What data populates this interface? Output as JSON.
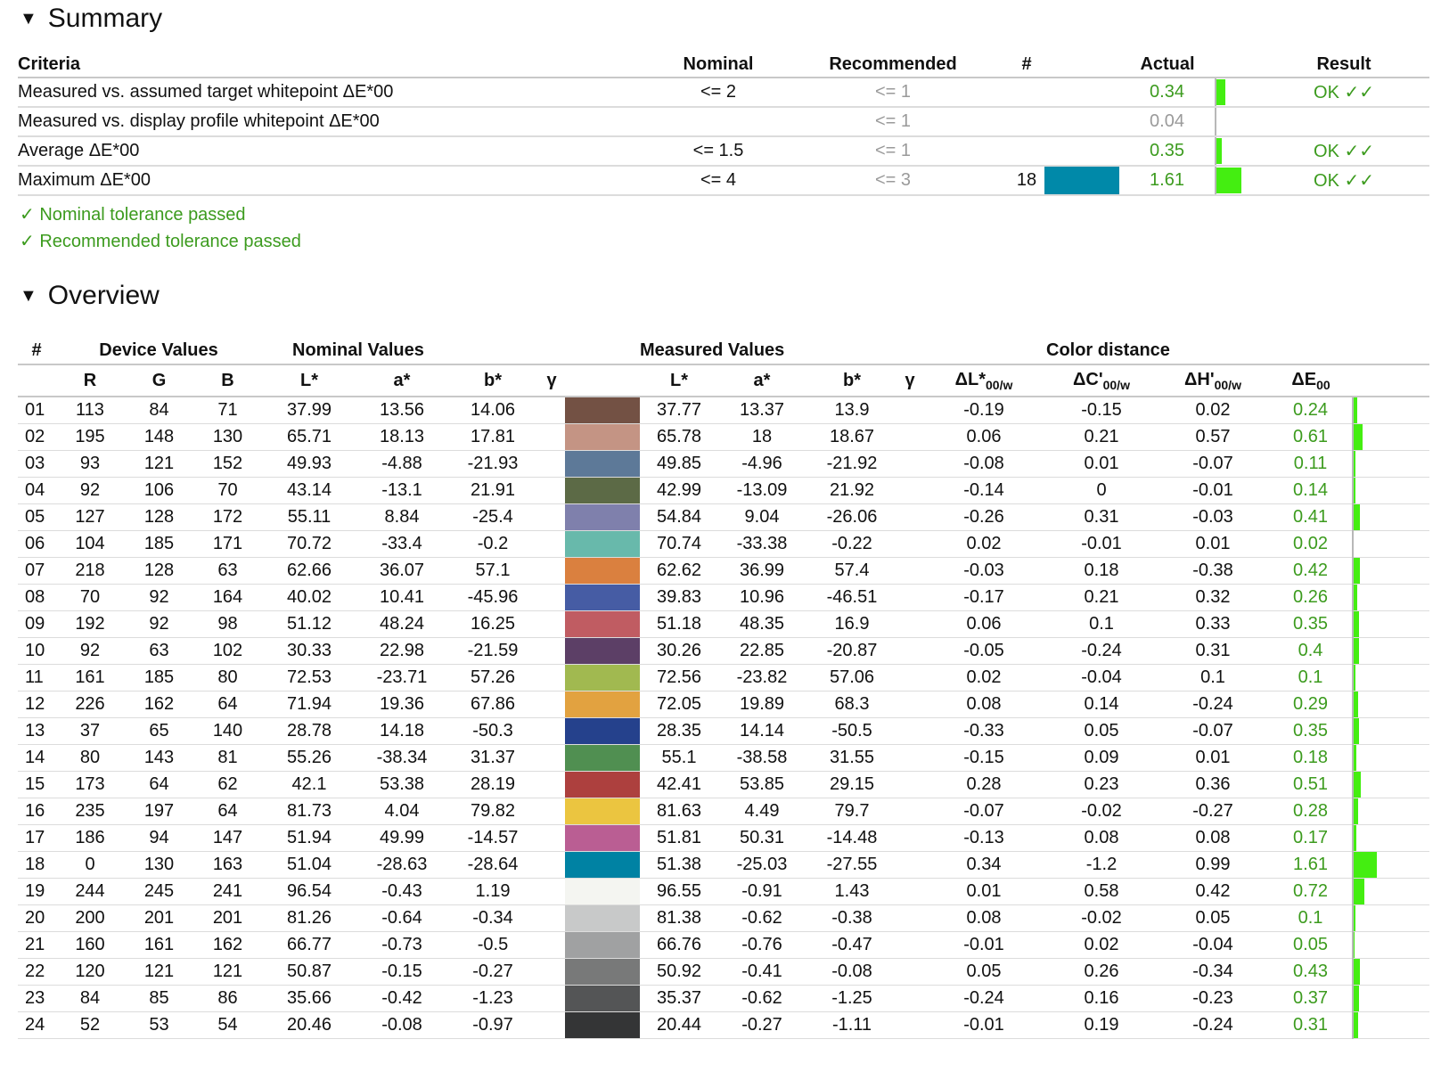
{
  "summary": {
    "title": "Summary",
    "columns": {
      "criteria": "Criteria",
      "nominal": "Nominal",
      "recommended": "Recommended",
      "num": "#",
      "actual": "Actual",
      "result": "Result"
    },
    "rows": [
      {
        "criteria": "Measured vs. assumed target whitepoint ΔE*00",
        "nominal": "<= 2",
        "recommended": "<= 1",
        "num": "",
        "actual": "0.34",
        "actual_fraction": 0.34,
        "result": "OK ✓✓",
        "actual_status": "ok"
      },
      {
        "criteria": "Measured vs. display profile whitepoint ΔE*00",
        "nominal": "",
        "recommended": "<= 1",
        "num": "",
        "actual": "0.04",
        "actual_fraction": 0,
        "result": "",
        "actual_status": "info"
      },
      {
        "criteria": "Average ΔE*00",
        "nominal": "<= 1.5",
        "recommended": "<= 1",
        "num": "",
        "actual": "0.35",
        "actual_fraction": 0.23,
        "result": "OK ✓✓",
        "actual_status": "ok"
      },
      {
        "criteria": "Maximum ΔE*00",
        "nominal": "<= 4",
        "recommended": "<= 3",
        "num": "18",
        "swatch": "#0089a9",
        "actual": "1.61",
        "actual_fraction": 1.0,
        "result": "OK ✓✓",
        "actual_status": "ok"
      }
    ],
    "pass_messages": [
      "✓ Nominal tolerance passed",
      "✓ Recommended tolerance passed"
    ]
  },
  "overview": {
    "title": "Overview",
    "group_headers": {
      "num": "#",
      "device": "Device Values",
      "nominal": "Nominal Values",
      "measured": "Measured Values",
      "distance": "Color distance"
    },
    "sub_headers": {
      "r": "R",
      "g": "G",
      "b": "B",
      "L": "L*",
      "a": "a*",
      "bb": "b*",
      "gamma": "γ",
      "mL": "L*",
      "ma": "a*",
      "mb": "b*",
      "mgamma": "γ",
      "dL": "ΔL*",
      "dC": "ΔC'",
      "dH": "ΔH'",
      "dE": "ΔE",
      "sub_w": "00/w",
      "sub_00": "00"
    },
    "rows": [
      {
        "id": "01",
        "r": "113",
        "g": "84",
        "b": "71",
        "L": "37.99",
        "a": "13.56",
        "bb": "14.06",
        "color": "#735144",
        "mL": "37.77",
        "ma": "13.37",
        "mb": "13.9",
        "dL": "-0.19",
        "dC": "-0.15",
        "dH": "0.02",
        "dE": "0.24"
      },
      {
        "id": "02",
        "r": "195",
        "g": "148",
        "b": "130",
        "L": "65.71",
        "a": "18.13",
        "bb": "17.81",
        "color": "#c49484",
        "mL": "65.78",
        "ma": "18",
        "mb": "18.67",
        "dL": "0.06",
        "dC": "0.21",
        "dH": "0.57",
        "dE": "0.61"
      },
      {
        "id": "03",
        "r": "93",
        "g": "121",
        "b": "152",
        "L": "49.93",
        "a": "-4.88",
        "bb": "-21.93",
        "color": "#5d7998",
        "mL": "49.85",
        "ma": "-4.96",
        "mb": "-21.92",
        "dL": "-0.08",
        "dC": "0.01",
        "dH": "-0.07",
        "dE": "0.11"
      },
      {
        "id": "04",
        "r": "92",
        "g": "106",
        "b": "70",
        "L": "43.14",
        "a": "-13.1",
        "bb": "21.91",
        "color": "#5c6a46",
        "mL": "42.99",
        "ma": "-13.09",
        "mb": "21.92",
        "dL": "-0.14",
        "dC": "0",
        "dH": "-0.01",
        "dE": "0.14"
      },
      {
        "id": "05",
        "r": "127",
        "g": "128",
        "b": "172",
        "L": "55.11",
        "a": "8.84",
        "bb": "-25.4",
        "color": "#7f80ac",
        "mL": "54.84",
        "ma": "9.04",
        "mb": "-26.06",
        "dL": "-0.26",
        "dC": "0.31",
        "dH": "-0.03",
        "dE": "0.41"
      },
      {
        "id": "06",
        "r": "104",
        "g": "185",
        "b": "171",
        "L": "70.72",
        "a": "-33.4",
        "bb": "-0.2",
        "color": "#68b9ab",
        "mL": "70.74",
        "ma": "-33.38",
        "mb": "-0.22",
        "dL": "0.02",
        "dC": "-0.01",
        "dH": "0.01",
        "dE": "0.02"
      },
      {
        "id": "07",
        "r": "218",
        "g": "128",
        "b": "63",
        "L": "62.66",
        "a": "36.07",
        "bb": "57.1",
        "color": "#da803f",
        "mL": "62.62",
        "ma": "36.99",
        "mb": "57.4",
        "dL": "-0.03",
        "dC": "0.18",
        "dH": "-0.38",
        "dE": "0.42"
      },
      {
        "id": "08",
        "r": "70",
        "g": "92",
        "b": "164",
        "L": "40.02",
        "a": "10.41",
        "bb": "-45.96",
        "color": "#465ca4",
        "mL": "39.83",
        "ma": "10.96",
        "mb": "-46.51",
        "dL": "-0.17",
        "dC": "0.21",
        "dH": "0.32",
        "dE": "0.26"
      },
      {
        "id": "09",
        "r": "192",
        "g": "92",
        "b": "98",
        "L": "51.12",
        "a": "48.24",
        "bb": "16.25",
        "color": "#c05c62",
        "mL": "51.18",
        "ma": "48.35",
        "mb": "16.9",
        "dL": "0.06",
        "dC": "0.1",
        "dH": "0.33",
        "dE": "0.35"
      },
      {
        "id": "10",
        "r": "92",
        "g": "63",
        "b": "102",
        "L": "30.33",
        "a": "22.98",
        "bb": "-21.59",
        "color": "#5c3f66",
        "mL": "30.26",
        "ma": "22.85",
        "mb": "-20.87",
        "dL": "-0.05",
        "dC": "-0.24",
        "dH": "0.31",
        "dE": "0.4"
      },
      {
        "id": "11",
        "r": "161",
        "g": "185",
        "b": "80",
        "L": "72.53",
        "a": "-23.71",
        "bb": "57.26",
        "color": "#a1b950",
        "mL": "72.56",
        "ma": "-23.82",
        "mb": "57.06",
        "dL": "0.02",
        "dC": "-0.04",
        "dH": "0.1",
        "dE": "0.1"
      },
      {
        "id": "12",
        "r": "226",
        "g": "162",
        "b": "64",
        "L": "71.94",
        "a": "19.36",
        "bb": "67.86",
        "color": "#e2a240",
        "mL": "72.05",
        "ma": "19.89",
        "mb": "68.3",
        "dL": "0.08",
        "dC": "0.14",
        "dH": "-0.24",
        "dE": "0.29"
      },
      {
        "id": "13",
        "r": "37",
        "g": "65",
        "b": "140",
        "L": "28.78",
        "a": "14.18",
        "bb": "-50.3",
        "color": "#25418c",
        "mL": "28.35",
        "ma": "14.14",
        "mb": "-50.5",
        "dL": "-0.33",
        "dC": "0.05",
        "dH": "-0.07",
        "dE": "0.35"
      },
      {
        "id": "14",
        "r": "80",
        "g": "143",
        "b": "81",
        "L": "55.26",
        "a": "-38.34",
        "bb": "31.37",
        "color": "#508f51",
        "mL": "55.1",
        "ma": "-38.58",
        "mb": "31.55",
        "dL": "-0.15",
        "dC": "0.09",
        "dH": "0.01",
        "dE": "0.18"
      },
      {
        "id": "15",
        "r": "173",
        "g": "64",
        "b": "62",
        "L": "42.1",
        "a": "53.38",
        "bb": "28.19",
        "color": "#ad403e",
        "mL": "42.41",
        "ma": "53.85",
        "mb": "29.15",
        "dL": "0.28",
        "dC": "0.23",
        "dH": "0.36",
        "dE": "0.51"
      },
      {
        "id": "16",
        "r": "235",
        "g": "197",
        "b": "64",
        "L": "81.73",
        "a": "4.04",
        "bb": "79.82",
        "color": "#ebc540",
        "mL": "81.63",
        "ma": "4.49",
        "mb": "79.7",
        "dL": "-0.07",
        "dC": "-0.02",
        "dH": "-0.27",
        "dE": "0.28"
      },
      {
        "id": "17",
        "r": "186",
        "g": "94",
        "b": "147",
        "L": "51.94",
        "a": "49.99",
        "bb": "-14.57",
        "color": "#ba5e93",
        "mL": "51.81",
        "ma": "50.31",
        "mb": "-14.48",
        "dL": "-0.13",
        "dC": "0.08",
        "dH": "0.08",
        "dE": "0.17"
      },
      {
        "id": "18",
        "r": "0",
        "g": "130",
        "b": "163",
        "L": "51.04",
        "a": "-28.63",
        "bb": "-28.64",
        "color": "#0082a3",
        "mL": "51.38",
        "ma": "-25.03",
        "mb": "-27.55",
        "dL": "0.34",
        "dC": "-1.2",
        "dH": "0.99",
        "dE": "1.61"
      },
      {
        "id": "19",
        "r": "244",
        "g": "245",
        "b": "241",
        "L": "96.54",
        "a": "-0.43",
        "bb": "1.19",
        "color": "#f4f5f1",
        "mL": "96.55",
        "ma": "-0.91",
        "mb": "1.43",
        "dL": "0.01",
        "dC": "0.58",
        "dH": "0.42",
        "dE": "0.72"
      },
      {
        "id": "20",
        "r": "200",
        "g": "201",
        "b": "201",
        "L": "81.26",
        "a": "-0.64",
        "bb": "-0.34",
        "color": "#c8c9c9",
        "mL": "81.38",
        "ma": "-0.62",
        "mb": "-0.38",
        "dL": "0.08",
        "dC": "-0.02",
        "dH": "0.05",
        "dE": "0.1"
      },
      {
        "id": "21",
        "r": "160",
        "g": "161",
        "b": "162",
        "L": "66.77",
        "a": "-0.73",
        "bb": "-0.5",
        "color": "#a0a1a2",
        "mL": "66.76",
        "ma": "-0.76",
        "mb": "-0.47",
        "dL": "-0.01",
        "dC": "0.02",
        "dH": "-0.04",
        "dE": "0.05"
      },
      {
        "id": "22",
        "r": "120",
        "g": "121",
        "b": "121",
        "L": "50.87",
        "a": "-0.15",
        "bb": "-0.27",
        "color": "#787979",
        "mL": "50.92",
        "ma": "-0.41",
        "mb": "-0.08",
        "dL": "0.05",
        "dC": "0.26",
        "dH": "-0.34",
        "dE": "0.43"
      },
      {
        "id": "23",
        "r": "84",
        "g": "85",
        "b": "86",
        "L": "35.66",
        "a": "-0.42",
        "bb": "-1.23",
        "color": "#545556",
        "mL": "35.37",
        "ma": "-0.62",
        "mb": "-1.25",
        "dL": "-0.24",
        "dC": "0.16",
        "dH": "-0.23",
        "dE": "0.37"
      },
      {
        "id": "24",
        "r": "52",
        "g": "53",
        "b": "54",
        "L": "20.46",
        "a": "-0.08",
        "bb": "-0.97",
        "color": "#343536",
        "mL": "20.44",
        "ma": "-0.27",
        "mb": "-1.11",
        "dL": "-0.01",
        "dC": "0.19",
        "dH": "-0.24",
        "dE": "0.31"
      }
    ]
  },
  "colors": {
    "ok_green": "#3c9b1e",
    "bar_green": "#44ee11",
    "muted_gray": "#9a9a9a"
  }
}
